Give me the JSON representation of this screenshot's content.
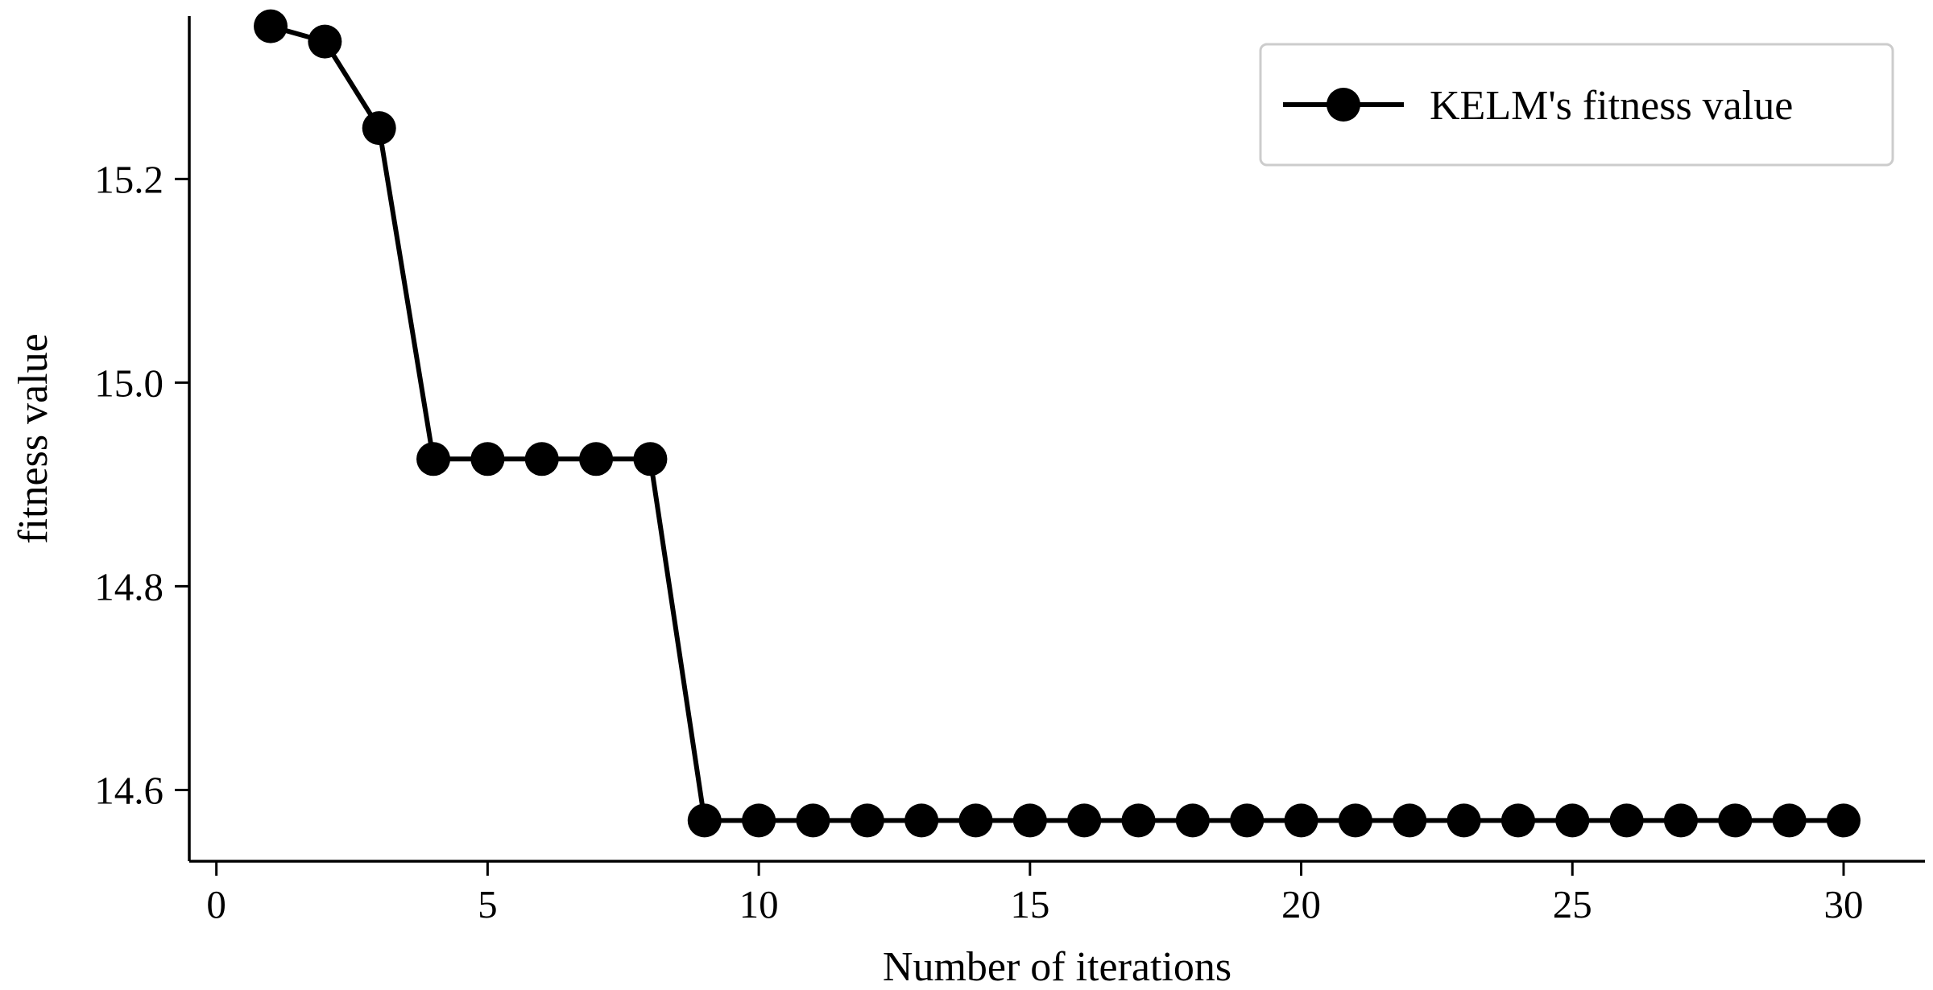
{
  "chart_data": {
    "type": "line",
    "title": "",
    "xlabel": "Number of iterations",
    "ylabel": "fitness value",
    "xlim": [
      -0.5,
      31.5
    ],
    "ylim": [
      14.53,
      15.36
    ],
    "x_ticks": [
      0,
      5,
      10,
      15,
      20,
      25,
      30
    ],
    "x_tick_labels": [
      "0",
      "5",
      "10",
      "15",
      "20",
      "25",
      "30"
    ],
    "y_ticks": [
      14.6,
      14.8,
      15.0,
      15.2
    ],
    "y_tick_labels": [
      "14.6",
      "14.8",
      "15.0",
      "15.2"
    ],
    "grid": false,
    "legend_position": "top-right",
    "series": [
      {
        "name": "KELM's fitness value",
        "color": "#000000",
        "marker": "circle",
        "x": [
          1,
          2,
          3,
          4,
          5,
          6,
          7,
          8,
          9,
          10,
          11,
          12,
          13,
          14,
          15,
          16,
          17,
          18,
          19,
          20,
          21,
          22,
          23,
          24,
          25,
          26,
          27,
          28,
          29,
          30
        ],
        "values": [
          15.35,
          15.335,
          15.25,
          14.925,
          14.925,
          14.925,
          14.925,
          14.925,
          14.57,
          14.57,
          14.57,
          14.57,
          14.57,
          14.57,
          14.57,
          14.57,
          14.57,
          14.57,
          14.57,
          14.57,
          14.57,
          14.57,
          14.57,
          14.57,
          14.57,
          14.57,
          14.57,
          14.57,
          14.57,
          14.57
        ]
      }
    ]
  }
}
